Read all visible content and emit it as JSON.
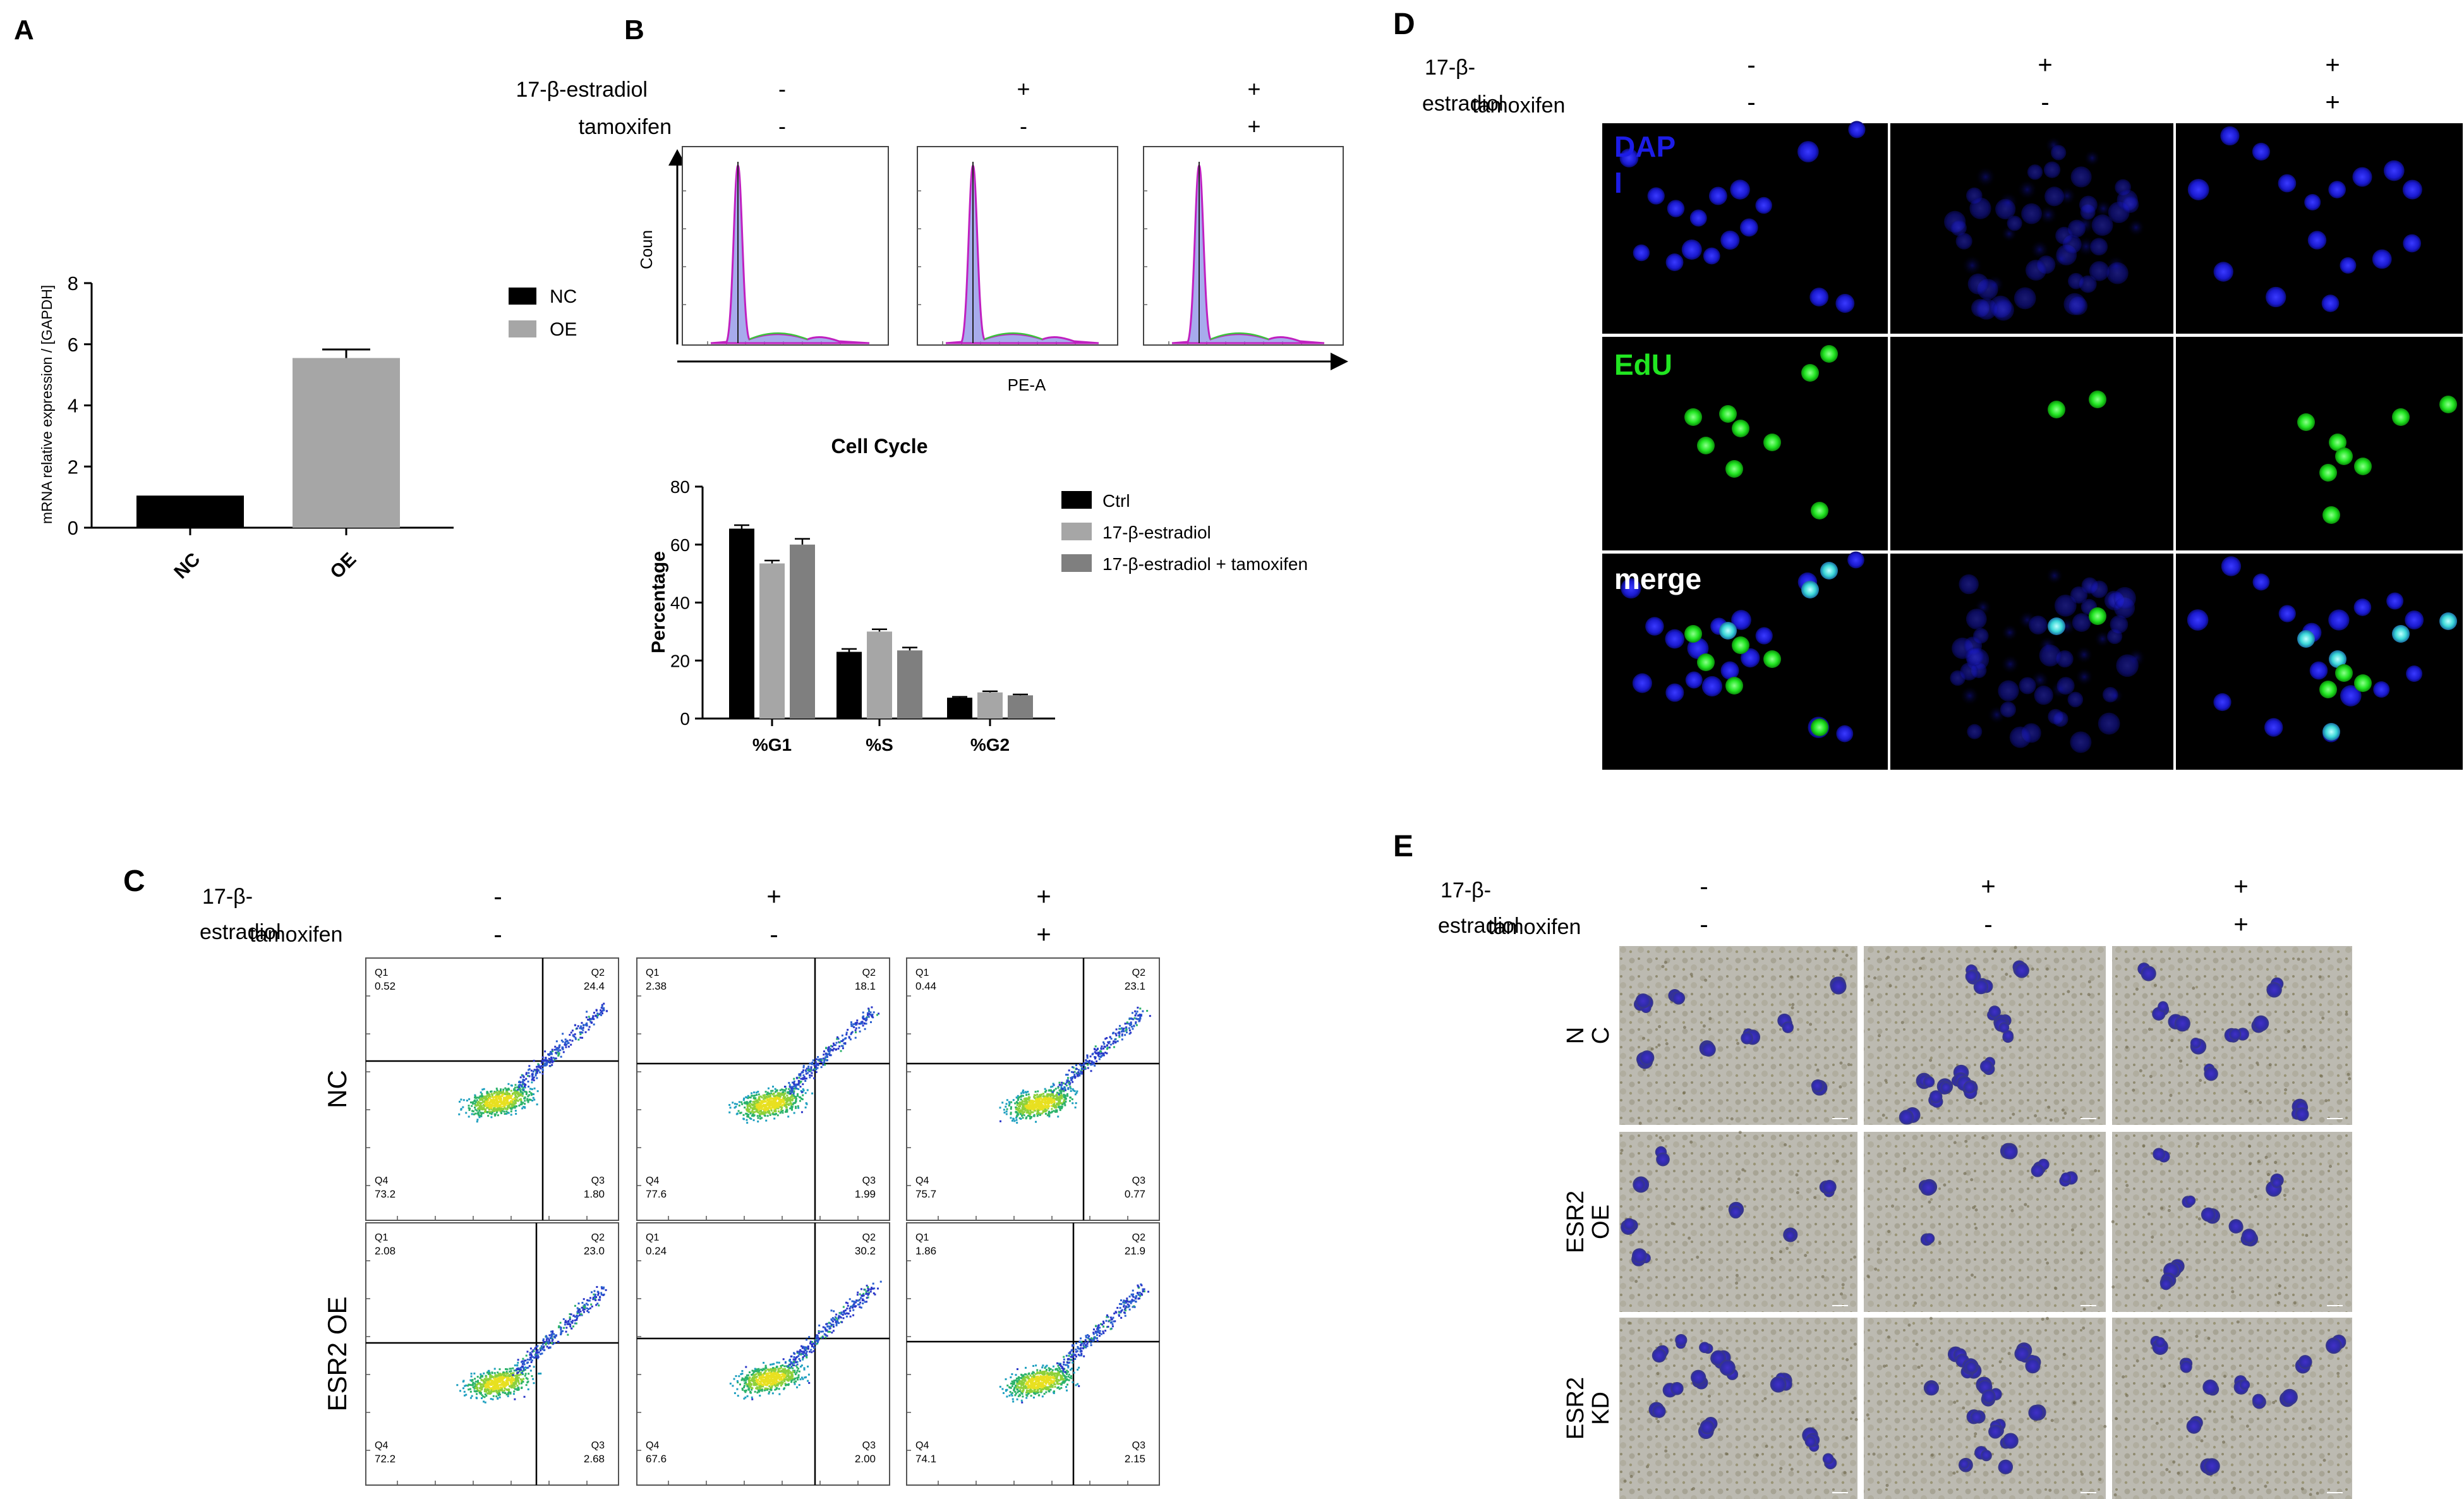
{
  "panels": {
    "A": {
      "letter": "A",
      "chart_data": {
        "type": "bar",
        "categories": [
          "NC",
          "OE"
        ],
        "values": [
          1.05,
          5.55
        ],
        "errors": [
          0,
          0.28
        ],
        "ylabel": "mRNA relative expression / [GAPDH]",
        "ylim": [
          0,
          8
        ],
        "yticks": [
          "0",
          "2",
          "4",
          "6",
          "8"
        ],
        "colors": [
          "#000000",
          "#a6a6a6"
        ],
        "legend": [
          "NC",
          "OE"
        ]
      }
    },
    "B": {
      "letter": "B",
      "row1_label": "17-β-estradiol",
      "row2_label": "tamoxifen",
      "row1_signs": [
        "-",
        "+",
        "+"
      ],
      "row2_signs": [
        "-",
        "-",
        "+"
      ],
      "hist_ylabel": "Coun",
      "hist_xlabel": "PE-A",
      "chart_data": {
        "type": "bar",
        "title": "Cell Cycle",
        "categories": [
          "%G1",
          "%S",
          "%G2"
        ],
        "ylabel": "Percentage",
        "ylim": [
          0,
          80
        ],
        "yticks": [
          "0",
          "20",
          "40",
          "60",
          "80"
        ],
        "series": [
          {
            "name": "Ctrl",
            "values": [
              65.5,
              23,
              7.2
            ],
            "errors": [
              1.2,
              1,
              0.3
            ],
            "color": "#000000"
          },
          {
            "name": "17-β-estradiol",
            "values": [
              53.5,
              30,
              9
            ],
            "errors": [
              1,
              0.8,
              0.4
            ],
            "color": "#a6a6a6"
          },
          {
            "name": "17-β-estradiol + tamoxifen",
            "values": [
              60,
              23.5,
              8
            ],
            "errors": [
              2,
              1,
              0.3
            ],
            "color": "#7f7f7f"
          }
        ]
      }
    },
    "C": {
      "letter": "C",
      "row1_label_a": "17-β-",
      "row1_label_b": "estradiol",
      "row2_label": "tamoxifen",
      "row1_signs": [
        "-",
        "+",
        "+"
      ],
      "row2_signs": [
        "-",
        "-",
        "+"
      ],
      "row_labels": [
        "NC",
        "ESR2 OE"
      ],
      "plots": [
        {
          "q1": "Q1",
          "q2": "Q2",
          "q3": "Q3",
          "q4": "Q4",
          "v1": "0.52",
          "v2": "24.4",
          "v3": "1.80",
          "v4": "73.2"
        },
        {
          "q1": "Q1",
          "q2": "Q2",
          "q3": "Q3",
          "q4": "Q4",
          "v1": "2.38",
          "v2": "18.1",
          "v3": "1.99",
          "v4": "77.6"
        },
        {
          "q1": "Q1",
          "q2": "Q2",
          "q3": "Q3",
          "q4": "Q4",
          "v1": "0.44",
          "v2": "23.1",
          "v3": "0.77",
          "v4": "75.7"
        },
        {
          "q1": "Q1",
          "q2": "Q2",
          "q3": "Q3",
          "q4": "Q4",
          "v1": "2.08",
          "v2": "23.0",
          "v3": "2.68",
          "v4": "72.2"
        },
        {
          "q1": "Q1",
          "q2": "Q2",
          "q3": "Q3",
          "q4": "Q4",
          "v1": "0.24",
          "v2": "30.2",
          "v3": "2.00",
          "v4": "67.6"
        },
        {
          "q1": "Q1",
          "q2": "Q2",
          "q3": "Q3",
          "q4": "Q4",
          "v1": "1.86",
          "v2": "21.9",
          "v3": "2.15",
          "v4": "74.1"
        }
      ]
    },
    "D": {
      "letter": "D",
      "row1_label_a": "17-β-",
      "row1_label_b": "estradiol",
      "row2_label": "tamoxifen",
      "row1_signs": [
        "-",
        "+",
        "+"
      ],
      "row2_signs": [
        "-",
        "-",
        "+"
      ],
      "row_labels": [
        "DAP",
        "I",
        "EdU",
        "merge"
      ],
      "colors": {
        "dapi": "#1c1ce6",
        "edu": "#21e621",
        "merge": "#ffffff"
      }
    },
    "E": {
      "letter": "E",
      "row1_label_a": "17-β-",
      "row1_label_b": "estradiol",
      "row2_label": "tamoxifen",
      "row1_signs": [
        "-",
        "+",
        "+"
      ],
      "row2_signs": [
        "-",
        "-",
        "+"
      ],
      "row_labels": [
        [
          "N",
          "C"
        ],
        [
          "ESR2",
          "OE"
        ],
        [
          "ESR2",
          "KD"
        ]
      ]
    }
  }
}
